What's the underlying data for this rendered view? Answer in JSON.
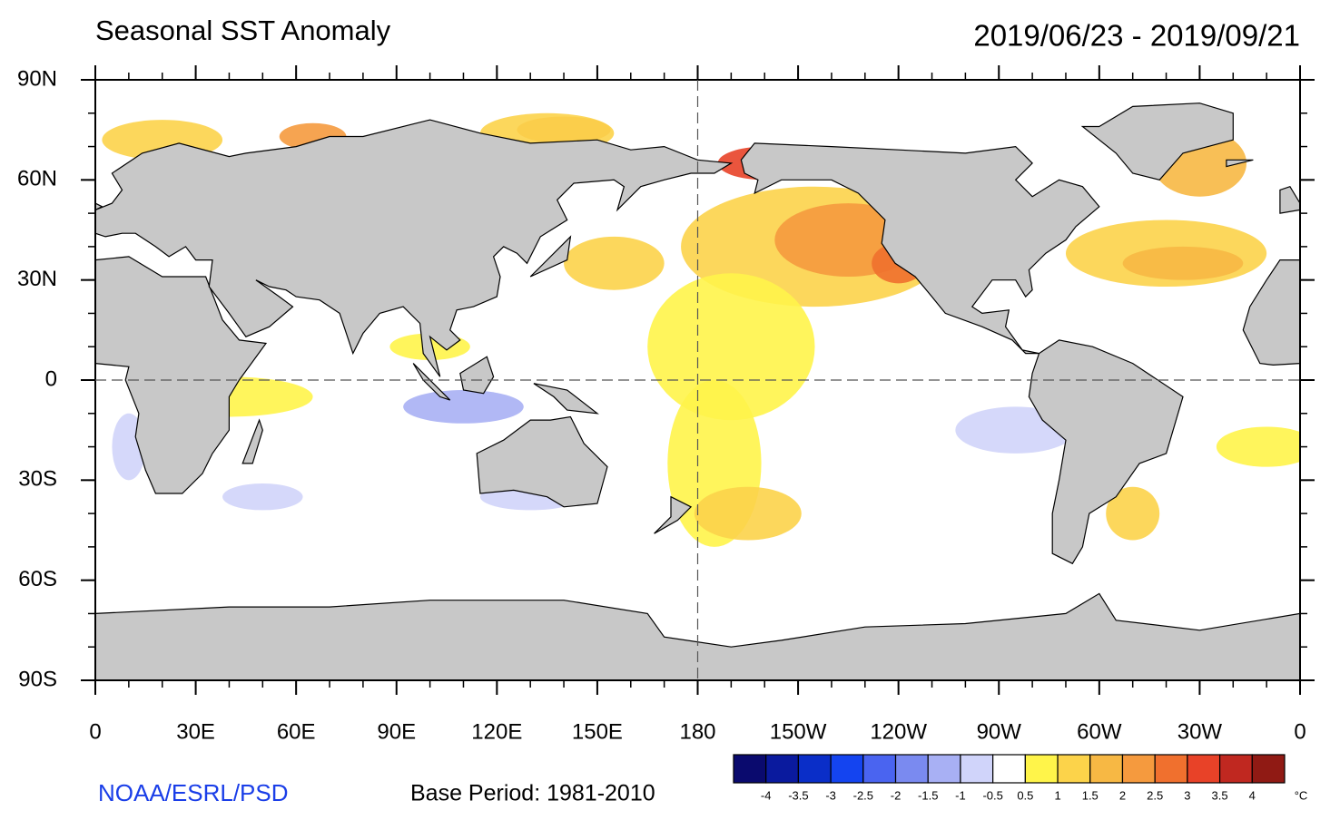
{
  "header": {
    "title": "Seasonal SST Anomaly",
    "date_range": "2019/06/23 - 2019/09/21"
  },
  "map": {
    "lat_ticks": [
      "90N",
      "60N",
      "30N",
      "0",
      "30S",
      "60S",
      "90S"
    ],
    "lon_ticks": [
      "0",
      "30E",
      "60E",
      "90E",
      "120E",
      "150E",
      "180",
      "150W",
      "120W",
      "90W",
      "60W",
      "30W",
      "0"
    ]
  },
  "colorbar": {
    "levels": [
      -4,
      -3.5,
      -3,
      -2.5,
      -2,
      -1.5,
      -1,
      -0.5,
      0.5,
      1,
      1.5,
      2,
      2.5,
      3,
      3.5,
      4
    ],
    "colors": [
      "#0a0a6e",
      "#0a1a9e",
      "#0a2ec8",
      "#1444f0",
      "#4a64f0",
      "#7a8af0",
      "#a8b0f4",
      "#d0d4fa",
      "#ffffff",
      "#fff44a",
      "#fcd34a",
      "#f7b844",
      "#f59a3e",
      "#f0702e",
      "#e84228",
      "#c02820",
      "#901a14"
    ],
    "unit": "°C"
  },
  "footer": {
    "credit": "NOAA/ESRL/PSD",
    "base_period": "Base Period: 1981-2010"
  }
}
